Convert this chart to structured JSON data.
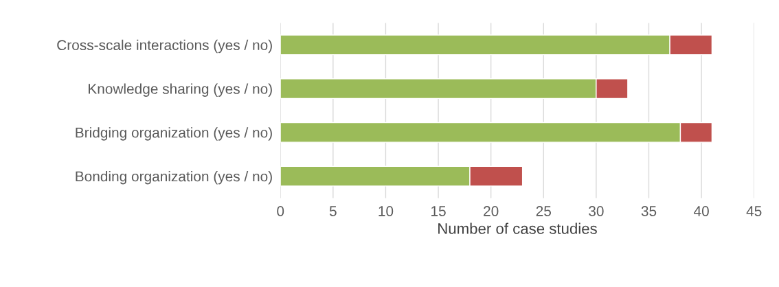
{
  "chart_data": {
    "type": "bar",
    "orientation": "horizontal",
    "stacked": true,
    "categories": [
      "Cross-scale interactions (yes / no)",
      "Knowledge sharing (yes / no)",
      "Bridging organization (yes / no)",
      "Bonding organization (yes / no)"
    ],
    "series": [
      {
        "color": "#9bbb59",
        "values": [
          37,
          30,
          38,
          18
        ]
      },
      {
        "color": "#c0504d",
        "values": [
          4,
          3,
          3,
          5
        ]
      }
    ],
    "xlabel": "Number of case studies",
    "xlim": [
      0,
      45
    ],
    "xticks": [
      0,
      5,
      10,
      15,
      20,
      25,
      30,
      35,
      40,
      45
    ],
    "grid": "x",
    "legend": false
  }
}
